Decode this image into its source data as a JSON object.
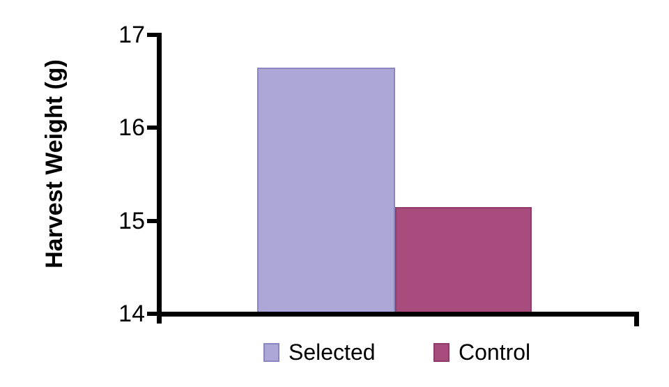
{
  "figure": {
    "background_color": "#ffffff",
    "text_color": "#000000",
    "axis_color": "#000000"
  },
  "chart_data": {
    "type": "bar",
    "title": "",
    "xlabel": "",
    "ylabel": "Harvest Weight (g)",
    "ylim": [
      14,
      17
    ],
    "yticks": [
      "14",
      "15",
      "16",
      "17"
    ],
    "grid": false,
    "legend_position": "bottom-center",
    "categories": [
      "Selected",
      "Control"
    ],
    "values": [
      16.65,
      15.15
    ],
    "series": [
      {
        "name": "Selected",
        "value": 16.65,
        "fill": "#aba7d6",
        "border": "#8a86c0"
      },
      {
        "name": "Control",
        "value": 15.15,
        "fill": "#a84b7d",
        "border": "#8e3d68"
      }
    ]
  }
}
